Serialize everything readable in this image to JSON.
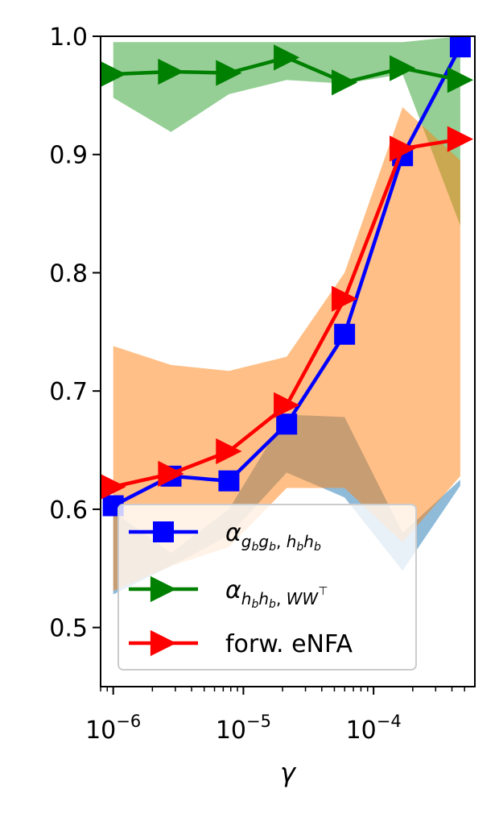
{
  "chart_data": {
    "type": "line",
    "title": "",
    "xlabel": "γ",
    "ylabel": "",
    "xscale": "log",
    "xlim": [
      8e-07,
      0.0006
    ],
    "ylim": [
      0.45,
      1.0
    ],
    "x": [
      1e-06,
      2.78e-06,
      7.74e-06,
      2.15e-05,
      5.99e-05,
      0.000167,
      0.000464
    ],
    "x_ticks": [
      1e-06,
      1e-05,
      0.0001
    ],
    "x_tick_labels": [
      {
        "base": "10",
        "exp": "−6"
      },
      {
        "base": "10",
        "exp": "−5"
      },
      {
        "base": "10",
        "exp": "−4"
      }
    ],
    "y_ticks": [
      0.5,
      0.6,
      0.7,
      0.8,
      0.9,
      1.0
    ],
    "y_tick_labels": [
      "0.5",
      "0.6",
      "0.7",
      "0.8",
      "0.9",
      "1.0"
    ],
    "grid": false,
    "legend_position": "lower-left",
    "series": [
      {
        "key": "alpha-g",
        "label": {
          "base": "α",
          "sub": "g",
          "subsub": "b",
          "mid": "g",
          "midsub": "b",
          "sep": ", ",
          "tail1": "h",
          "tail1sub": "b",
          "tail2": "h",
          "tail2sub": "b"
        },
        "color": "#0000ff",
        "marker": "square",
        "values": [
          0.603,
          0.628,
          0.624,
          0.672,
          0.748,
          0.899,
          0.991
        ],
        "band_color": "#1f77b4",
        "band_upper": [
          0.598,
          0.563,
          0.6,
          0.68,
          0.678,
          0.58,
          0.625
        ],
        "band_lower": [
          0.528,
          0.552,
          0.578,
          0.631,
          0.61,
          0.548,
          0.62
        ]
      },
      {
        "key": "alpha-h",
        "label": "α_{h_b h_b, WW^⊤}",
        "color": "#008000",
        "marker": "triangle-right",
        "values": [
          0.968,
          0.97,
          0.969,
          0.982,
          0.961,
          0.973,
          0.963
        ],
        "band_color": "#2ca02c",
        "band_upper": [
          0.995,
          0.995,
          0.995,
          0.995,
          0.995,
          0.995,
          1.0
        ],
        "band_lower": [
          0.948,
          0.919,
          0.951,
          0.963,
          0.96,
          0.968,
          0.84
        ]
      },
      {
        "key": "forw-enfa",
        "label": "forw. eNFA",
        "color": "#ff0000",
        "marker": "triangle-right",
        "values": [
          0.619,
          0.63,
          0.649,
          0.688,
          0.778,
          0.905,
          0.913
        ],
        "band_color": "#ff7f0e",
        "band_upper": [
          0.738,
          0.722,
          0.717,
          0.729,
          0.8,
          0.94,
          0.895
        ],
        "band_lower": [
          0.531,
          0.552,
          0.568,
          0.618,
          0.618,
          0.572,
          0.628
        ]
      }
    ],
    "legend": [
      {
        "series": "alpha-g"
      },
      {
        "series": "alpha-h"
      },
      {
        "series": "forw-enfa",
        "text": "forw. eNFA"
      }
    ]
  }
}
